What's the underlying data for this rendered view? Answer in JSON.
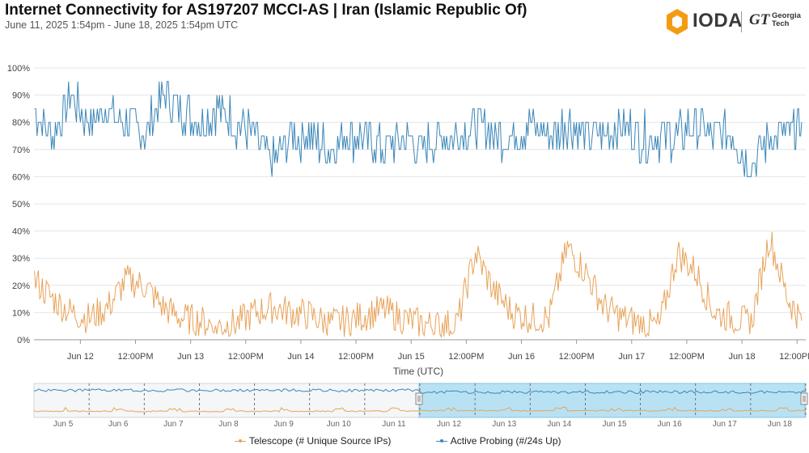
{
  "header": {
    "title": "Internet Connectivity for AS197207 MCCI-AS | Iran (Islamic Republic Of)",
    "subtitle": "June 11, 2025 1:54pm - June 18, 2025 1:54pm UTC"
  },
  "logo": {
    "ioda": "IODA",
    "gt_monogram": "GT",
    "gt_line1": "Georgia",
    "gt_line2": "Tech"
  },
  "colors": {
    "telescope": "#e8a35a",
    "active_probing": "#3b86b8",
    "brand_orange": "#f39c12",
    "nav_selection": "#b8e2f4"
  },
  "legend": {
    "telescope": "Telescope (# Unique Source IPs)",
    "active_probing": "Active Probing (#/24s Up)"
  },
  "chart_data": {
    "type": "line",
    "title": "Internet Connectivity for AS197207 MCCI-AS | Iran (Islamic Republic Of)",
    "xlabel": "Time (UTC)",
    "ylabel": "",
    "xlim": [
      "2025-06-11T13:54",
      "2025-06-18T13:54"
    ],
    "ylim": [
      0,
      100
    ],
    "yticks": [
      "0%",
      "10%",
      "20%",
      "30%",
      "40%",
      "50%",
      "60%",
      "70%",
      "80%",
      "90%",
      "100%"
    ],
    "xticks": [
      "Jun 12",
      "12:00PM",
      "Jun 13",
      "12:00PM",
      "Jun 14",
      "12:00PM",
      "Jun 15",
      "12:00PM",
      "Jun 16",
      "12:00PM",
      "Jun 17",
      "12:00PM",
      "Jun 18",
      "12:00PM"
    ],
    "grid": "horizontal",
    "series": [
      {
        "name": "Active Probing (#/24s Up)",
        "x": [
          "06-11 14:00",
          "06-11 18:00",
          "06-11 22:00",
          "06-12 02:00",
          "06-12 06:00",
          "06-12 10:00",
          "06-12 14:00",
          "06-12 18:00",
          "06-12 22:00",
          "06-13 02:00",
          "06-13 06:00",
          "06-13 10:00",
          "06-13 14:00",
          "06-13 18:00",
          "06-13 22:00",
          "06-14 02:00",
          "06-14 06:00",
          "06-14 10:00",
          "06-14 14:00",
          "06-14 18:00",
          "06-14 22:00",
          "06-15 02:00",
          "06-15 06:00",
          "06-15 10:00",
          "06-15 14:00",
          "06-15 18:00",
          "06-15 22:00",
          "06-16 02:00",
          "06-16 06:00",
          "06-16 10:00",
          "06-16 14:00",
          "06-16 18:00",
          "06-16 22:00",
          "06-17 02:00",
          "06-17 06:00",
          "06-17 10:00",
          "06-17 14:00",
          "06-17 18:00",
          "06-17 22:00",
          "06-18 02:00",
          "06-18 06:00",
          "06-18 10:00",
          "06-18 13:00"
        ],
        "values": [
          85,
          75,
          90,
          80,
          85,
          80,
          75,
          90,
          85,
          80,
          85,
          80,
          75,
          65,
          75,
          75,
          70,
          75,
          75,
          70,
          75,
          70,
          75,
          75,
          80,
          75,
          75,
          80,
          75,
          80,
          75,
          75,
          80,
          75,
          75,
          75,
          80,
          75,
          75,
          65,
          75,
          75,
          80
        ]
      },
      {
        "name": "Telescope (# Unique Source IPs)",
        "x": [
          "06-11 14:00",
          "06-11 18:00",
          "06-11 22:00",
          "06-12 02:00",
          "06-12 06:00",
          "06-12 10:00",
          "06-12 14:00",
          "06-12 18:00",
          "06-12 22:00",
          "06-13 02:00",
          "06-13 06:00",
          "06-13 10:00",
          "06-13 14:00",
          "06-13 18:00",
          "06-13 22:00",
          "06-14 02:00",
          "06-14 06:00",
          "06-14 10:00",
          "06-14 14:00",
          "06-14 18:00",
          "06-14 22:00",
          "06-15 02:00",
          "06-15 06:00",
          "06-15 10:00",
          "06-15 14:00",
          "06-15 18:00",
          "06-15 22:00",
          "06-16 02:00",
          "06-16 06:00",
          "06-16 10:00",
          "06-16 14:00",
          "06-16 18:00",
          "06-16 22:00",
          "06-17 02:00",
          "06-17 06:00",
          "06-17 10:00",
          "06-17 14:00",
          "06-17 18:00",
          "06-17 22:00",
          "06-18 02:00",
          "06-18 06:00",
          "06-18 10:00",
          "06-18 13:00"
        ],
        "values": [
          22,
          15,
          10,
          8,
          12,
          22,
          20,
          12,
          8,
          7,
          5,
          6,
          10,
          12,
          10,
          9,
          6,
          7,
          9,
          11,
          8,
          6,
          5,
          6,
          32,
          18,
          10,
          8,
          8,
          34,
          25,
          12,
          8,
          6,
          5,
          32,
          25,
          10,
          8,
          6,
          38,
          15,
          7
        ]
      }
    ],
    "navigator": {
      "xticks": [
        "Jun 5",
        "Jun 6",
        "Jun 7",
        "Jun 8",
        "Jun 9",
        "Jun 10",
        "Jun 11",
        "Jun 12",
        "Jun 13",
        "Jun 14",
        "Jun 15",
        "Jun 16",
        "Jun 17",
        "Jun 18"
      ]
    }
  }
}
